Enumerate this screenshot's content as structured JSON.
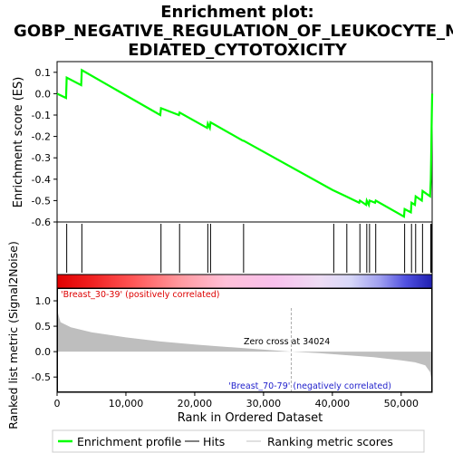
{
  "chart_data": {
    "type": "line",
    "title_lines": [
      "Enrichment plot:",
      "GOBP_NEGATIVE_REGULATION_OF_LEUKOCYTE_M",
      "EDIATED_CYTOTOXICITY"
    ],
    "es_panel": {
      "ylabel": "Enrichment score (ES)",
      "ylim": [
        -0.6,
        0.15
      ],
      "yticks": [
        0.1,
        0.0,
        -0.1,
        -0.2,
        -0.3,
        -0.4,
        -0.5,
        -0.6
      ],
      "ytick_labels": [
        "0.1",
        "0.0",
        "-0.1",
        "-0.2",
        "-0.3",
        "-0.4",
        "-0.5",
        "-0.6"
      ],
      "series_name": "Enrichment profile",
      "color": "#00ff00",
      "points": [
        [
          0,
          0.0
        ],
        [
          1300,
          -0.02
        ],
        [
          1400,
          0.075
        ],
        [
          3500,
          0.04
        ],
        [
          3600,
          0.11
        ],
        [
          15000,
          -0.1
        ],
        [
          15100,
          -0.068
        ],
        [
          17700,
          -0.1
        ],
        [
          17800,
          -0.088
        ],
        [
          21800,
          -0.16
        ],
        [
          21900,
          -0.14
        ],
        [
          22200,
          -0.16
        ],
        [
          22300,
          -0.134
        ],
        [
          27000,
          -0.22
        ],
        [
          27100,
          -0.22
        ],
        [
          40000,
          -0.45
        ],
        [
          42000,
          -0.48
        ],
        [
          43900,
          -0.51
        ],
        [
          44000,
          -0.5
        ],
        [
          44900,
          -0.52
        ],
        [
          45000,
          -0.5
        ],
        [
          45300,
          -0.52
        ],
        [
          45400,
          -0.5
        ],
        [
          46200,
          -0.51
        ],
        [
          46300,
          -0.5
        ],
        [
          50400,
          -0.575
        ],
        [
          50500,
          -0.54
        ],
        [
          51400,
          -0.555
        ],
        [
          51500,
          -0.51
        ],
        [
          52000,
          -0.52
        ],
        [
          52100,
          -0.48
        ],
        [
          53000,
          -0.5
        ],
        [
          53100,
          -0.455
        ],
        [
          54200,
          -0.48
        ],
        [
          54300,
          -0.4
        ],
        [
          54350,
          -0.3
        ],
        [
          54400,
          -0.21
        ],
        [
          54450,
          -0.1
        ],
        [
          54500,
          0.0
        ]
      ]
    },
    "hits": [
      1400,
      3600,
      15100,
      17800,
      21900,
      22300,
      27100,
      40200,
      42100,
      44000,
      45000,
      45400,
      46300,
      50500,
      51500,
      52100,
      53100,
      54300,
      54350,
      54400,
      54450,
      54500
    ],
    "ranking_panel": {
      "ylabel": "Ranked list metric (Signal2Noise)",
      "ylim": [
        -0.8,
        1.25
      ],
      "yticks": [
        1.0,
        0.5,
        0.0,
        -0.5
      ],
      "ytick_labels": [
        "1.0",
        "0.5",
        "0.0",
        "-0.5"
      ],
      "positive_label": "'Breast_30-39' (positively correlated)",
      "negative_label": "'Breast_70-79' (negatively correlated)",
      "zero_cross_text": "Zero cross at 34024",
      "zero_cross": 34024,
      "metric_curve": [
        [
          0,
          0.82
        ],
        [
          500,
          0.58
        ],
        [
          2000,
          0.48
        ],
        [
          5000,
          0.38
        ],
        [
          10000,
          0.28
        ],
        [
          15000,
          0.2
        ],
        [
          20000,
          0.14
        ],
        [
          25000,
          0.09
        ],
        [
          30000,
          0.04
        ],
        [
          34024,
          0.0
        ],
        [
          38000,
          -0.03
        ],
        [
          42000,
          -0.07
        ],
        [
          46000,
          -0.11
        ],
        [
          50000,
          -0.17
        ],
        [
          52000,
          -0.21
        ],
        [
          53500,
          -0.27
        ],
        [
          54200,
          -0.4
        ],
        [
          54400,
          -0.55
        ],
        [
          54500,
          -0.8
        ]
      ]
    },
    "xaxis": {
      "label": "Rank in Ordered Dataset",
      "xlim": [
        0,
        54500
      ],
      "ticks": [
        0,
        10000,
        20000,
        30000,
        40000,
        50000
      ],
      "tick_labels": [
        "0",
        "10,000",
        "20,000",
        "30,000",
        "40,000",
        "50,000"
      ]
    },
    "legend": {
      "placement": "bottom",
      "items": [
        {
          "label": "Enrichment profile",
          "color": "#00ff00"
        },
        {
          "label": "Hits",
          "color": "#000000"
        },
        {
          "label": "Ranking metric scores",
          "color": "#c0c0c0"
        }
      ]
    },
    "colors": {
      "positive_label": "#dd0000",
      "negative_label": "#2222cc",
      "metric_fill": "#bebebe",
      "zero_line": "#aaaaaa"
    }
  }
}
